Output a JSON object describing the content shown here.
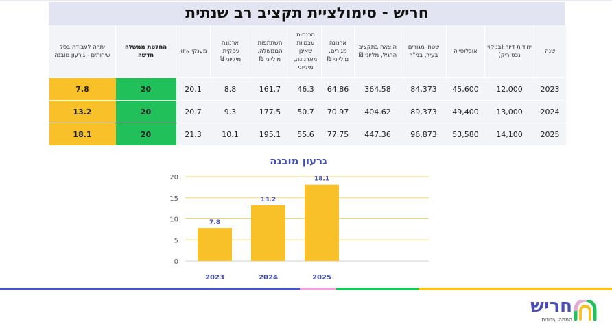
{
  "title": "חריש - סימולציית תקציב רב שנתית",
  "table": {
    "headers": [
      "שנה",
      "יחידות דיור (בניקוי נכס ריק)",
      "אוכלוסייה",
      "שטחי מגורים בעיר, במ\"ר",
      "הוצאה בתקציב הרגיל, מליוני ₪",
      "ארנונה מגורים, מיליוני ₪",
      "הכנסות עצמיות שאינן מארנונה, מיליוני",
      "השתתפות הממשלה, מיליוני ₪",
      "ארנונה עסקית, מיליוני ₪",
      "מענקי איזון",
      "החלטת ממשלה חדשה",
      "יתרה לעבודה בסל שירותים - גירעון מובנה"
    ],
    "rows": [
      [
        "2023",
        "12,000",
        "45,600",
        "84,373",
        "364.58",
        "64.86",
        "46.3",
        "161.7",
        "8.8",
        "20.1",
        "20",
        "7.8"
      ],
      [
        "2024",
        "13,000",
        "49,400",
        "89,373",
        "404.62",
        "70.97",
        "50.7",
        "177.5",
        "9.3",
        "20.7",
        "20",
        "13.2"
      ],
      [
        "2025",
        "14,100",
        "53,580",
        "96,873",
        "447.36",
        "77.75",
        "55.6",
        "195.1",
        "10.1",
        "21.3",
        "20",
        "18.1"
      ]
    ]
  },
  "chart_data": {
    "type": "bar",
    "title": "גרעון מובנה",
    "categories": [
      "2023",
      "2024",
      "2025"
    ],
    "values": [
      7.8,
      13.2,
      18.1
    ],
    "yticks": [
      0,
      5,
      10,
      15,
      20
    ],
    "ylim": [
      0,
      20
    ],
    "grid": true,
    "bar_color": "#f8c12a",
    "label_color": "#4450b0"
  },
  "colors": {
    "decision_cell": "#22c05a",
    "deficit_cell": "#f8c12a",
    "line_segments": [
      "#4a55b8",
      "#e8a7d6",
      "#22c05a",
      "#f8c12a"
    ]
  },
  "logo": {
    "word": "חריש",
    "tagline": "הממה עירונית"
  }
}
